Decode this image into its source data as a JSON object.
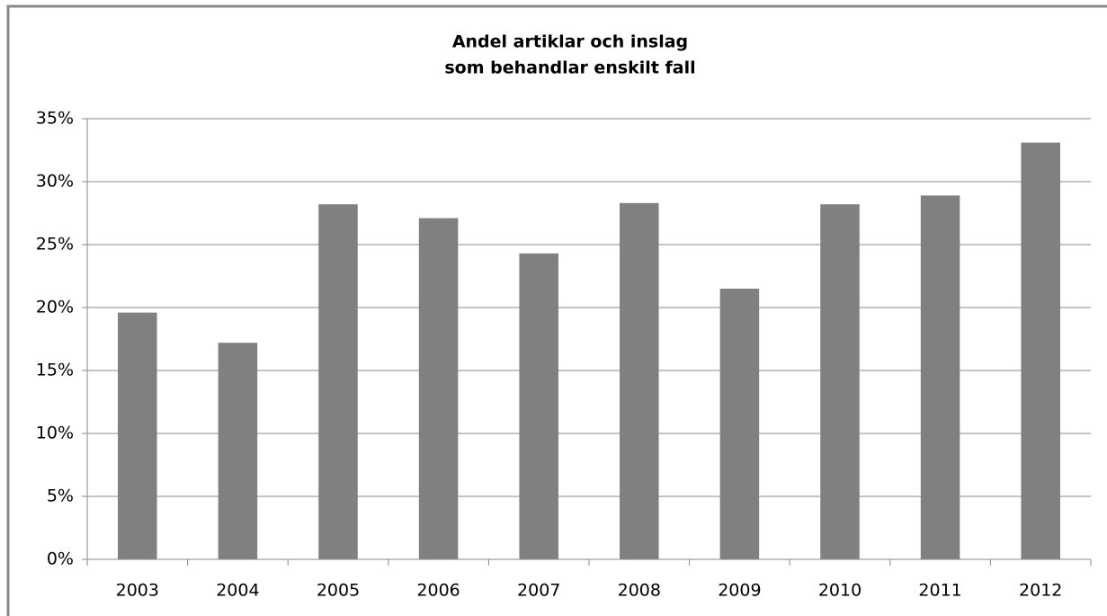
{
  "chart_data": {
    "type": "bar",
    "title": [
      "Andel artiklar och inslag",
      "som behandlar enskilt fall"
    ],
    "categories": [
      "2003",
      "2004",
      "2005",
      "2006",
      "2007",
      "2008",
      "2009",
      "2010",
      "2011",
      "2012"
    ],
    "values": [
      19.6,
      17.2,
      28.2,
      27.1,
      24.3,
      28.3,
      21.5,
      28.2,
      28.9,
      33.1
    ],
    "color": "#808080",
    "ylim": [
      0,
      35
    ],
    "yticks": [
      {
        "value": 0,
        "label": "0%"
      },
      {
        "value": 5,
        "label": "5%"
      },
      {
        "value": 10,
        "label": "10%"
      },
      {
        "value": 15,
        "label": "15%"
      },
      {
        "value": 20,
        "label": "20%"
      },
      {
        "value": 25,
        "label": "25%"
      },
      {
        "value": 30,
        "label": "30%"
      },
      {
        "value": 35,
        "label": "35%"
      }
    ],
    "grid": true
  }
}
